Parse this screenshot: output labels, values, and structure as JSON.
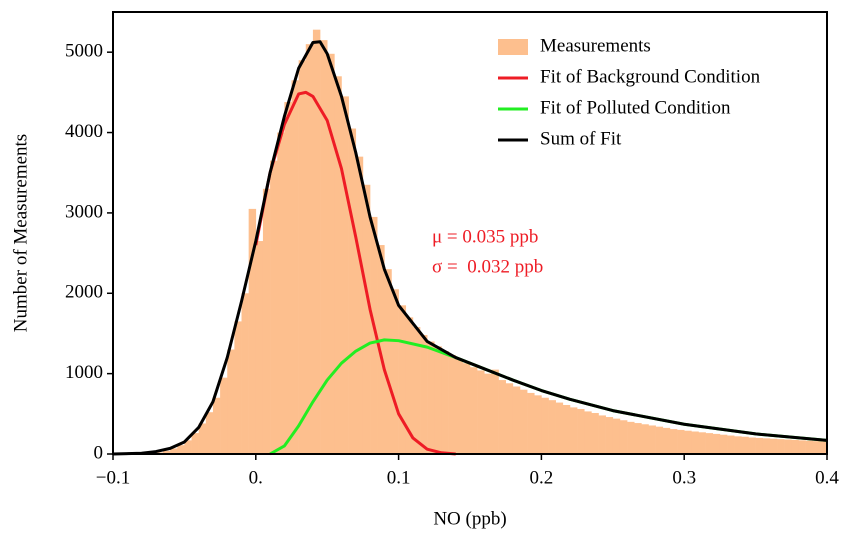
{
  "chart_data": {
    "type": "histogram",
    "xlabel": "NO (ppb)",
    "ylabel": "Number of Measurements",
    "xlim": [
      -0.1,
      0.4
    ],
    "ylim": [
      0,
      5500
    ],
    "xticks": [
      {
        "value": -0.1,
        "label": "−0.1"
      },
      {
        "value": 0,
        "label": "0."
      },
      0.1,
      0.2,
      0.3,
      0.4
    ],
    "yticks": [
      0,
      1000,
      2000,
      3000,
      4000,
      5000
    ],
    "legend": "upper right",
    "hist_name": "Measurements",
    "hist_color": "#fdbf8e",
    "bins": [
      -0.1,
      -0.095,
      -0.09,
      -0.085,
      -0.08,
      -0.075,
      -0.07,
      -0.065,
      -0.06,
      -0.055,
      -0.05,
      -0.045,
      -0.04,
      -0.035,
      -0.03,
      -0.025,
      -0.02,
      -0.015,
      -0.01,
      -0.005,
      0,
      0.005,
      0.01,
      0.015,
      0.02,
      0.025,
      0.03,
      0.035,
      0.04,
      0.045,
      0.05,
      0.055,
      0.06,
      0.065,
      0.07,
      0.075,
      0.08,
      0.085,
      0.09,
      0.095,
      0.1,
      0.105,
      0.11,
      0.115,
      0.12,
      0.125,
      0.13,
      0.135,
      0.14,
      0.145,
      0.15,
      0.155,
      0.16,
      0.165,
      0.17,
      0.175,
      0.18,
      0.185,
      0.19,
      0.195,
      0.2,
      0.205,
      0.21,
      0.215,
      0.22,
      0.225,
      0.23,
      0.235,
      0.24,
      0.245,
      0.25,
      0.255,
      0.26,
      0.265,
      0.27,
      0.275,
      0.28,
      0.285,
      0.29,
      0.295,
      0.3,
      0.305,
      0.31,
      0.315,
      0.32,
      0.325,
      0.33,
      0.335,
      0.34,
      0.345,
      0.35,
      0.355,
      0.36,
      0.365,
      0.37,
      0.375,
      0.38,
      0.385,
      0.39,
      0.395,
      0.4
    ],
    "counts": [
      0,
      0,
      0,
      0,
      5,
      10,
      20,
      40,
      70,
      110,
      170,
      260,
      380,
      520,
      700,
      950,
      1300,
      1650,
      2000,
      3050,
      2650,
      3300,
      3650,
      4000,
      4380,
      4650,
      4900,
      5100,
      5280,
      5150,
      4980,
      4700,
      4450,
      4050,
      3700,
      3350,
      2950,
      2600,
      2300,
      2050,
      1850,
      1700,
      1580,
      1480,
      1400,
      1340,
      1280,
      1230,
      1180,
      1130,
      1080,
      1040,
      1000,
      1050,
      920,
      880,
      840,
      800,
      760,
      730,
      700,
      670,
      640,
      610,
      580,
      560,
      530,
      510,
      480,
      460,
      440,
      420,
      400,
      385,
      370,
      355,
      340,
      325,
      310,
      300,
      290,
      280,
      270,
      260,
      250,
      240,
      230,
      220,
      215,
      205,
      200,
      195,
      190,
      185,
      180,
      175,
      170,
      165,
      160,
      155
    ],
    "series": [
      {
        "name": "Fit of Background Condition",
        "color": "#ee1c25",
        "x": [
          0,
          0.01,
          0.02,
          0.03,
          0.035,
          0.04,
          0.05,
          0.06,
          0.07,
          0.08,
          0.09,
          0.1,
          0.11,
          0.12,
          0.13,
          0.14
        ],
        "values": [
          2600,
          3500,
          4100,
          4480,
          4500,
          4450,
          4150,
          3550,
          2700,
          1800,
          1050,
          500,
          200,
          60,
          15,
          0
        ]
      },
      {
        "name": "Fit of Polluted Condition",
        "color": "#22ee22",
        "x": [
          0.01,
          0.02,
          0.03,
          0.04,
          0.05,
          0.06,
          0.07,
          0.08,
          0.09,
          0.1,
          0.12,
          0.14,
          0.16,
          0.18,
          0.2,
          0.22,
          0.25,
          0.3,
          0.35,
          0.4
        ],
        "values": [
          0,
          100,
          350,
          650,
          920,
          1130,
          1280,
          1380,
          1420,
          1410,
          1330,
          1200,
          1060,
          920,
          790,
          680,
          540,
          370,
          250,
          170
        ]
      },
      {
        "name": "Sum of Fit",
        "color": "#000000",
        "x": [
          -0.1,
          -0.08,
          -0.07,
          -0.06,
          -0.05,
          -0.04,
          -0.03,
          -0.02,
          -0.01,
          0,
          0.01,
          0.02,
          0.03,
          0.04,
          0.045,
          0.05,
          0.06,
          0.07,
          0.08,
          0.09,
          0.1,
          0.12,
          0.14,
          0.16,
          0.18,
          0.2,
          0.22,
          0.25,
          0.3,
          0.35,
          0.4
        ],
        "values": [
          0,
          10,
          30,
          70,
          150,
          330,
          650,
          1200,
          1900,
          2650,
          3500,
          4200,
          4800,
          5120,
          5130,
          4980,
          4450,
          3750,
          2950,
          2300,
          1850,
          1400,
          1200,
          1060,
          920,
          790,
          680,
          540,
          370,
          250,
          170
        ]
      }
    ],
    "annotations": [
      {
        "text": "μ = 0.035 ppb",
        "color": "#ee1c25"
      },
      {
        "text": "σ =  0.032 ppb",
        "color": "#ee1c25"
      }
    ]
  }
}
